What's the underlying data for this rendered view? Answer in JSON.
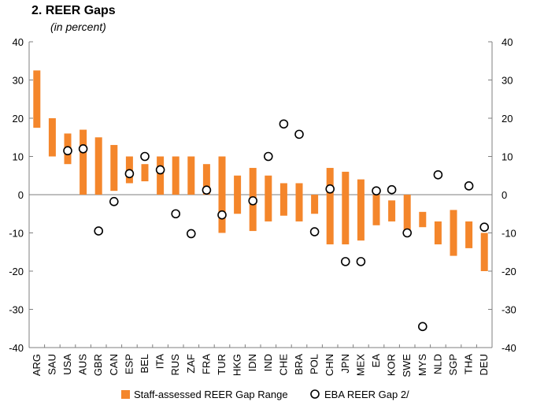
{
  "chart_data": {
    "type": "bar",
    "title": "2. REER Gaps",
    "subtitle": "(in percent)",
    "categories": [
      "ARG",
      "SAU",
      "USA",
      "AUS",
      "GBR",
      "CAN",
      "ESP",
      "BEL",
      "ITA",
      "RUS",
      "ZAF",
      "FRA",
      "TUR",
      "HKG",
      "IDN",
      "IND",
      "CHE",
      "BRA",
      "POL",
      "CHN",
      "JPN",
      "MEX",
      "EA",
      "KOR",
      "SWE",
      "MYS",
      "NLD",
      "SGP",
      "THA",
      "DEU"
    ],
    "series": [
      {
        "name": "Staff-assessed REER Gap Range",
        "kind": "floating-bar",
        "low": [
          17.5,
          10,
          8,
          0,
          0,
          1,
          3,
          3.5,
          0,
          0,
          0,
          0,
          -10,
          -5,
          -9.5,
          -7,
          -5.5,
          -7,
          -5,
          -13,
          -13,
          -12,
          -8,
          -7,
          -10,
          -8.5,
          -13,
          -16,
          -14,
          -20
        ],
        "high": [
          32.5,
          20,
          16,
          17,
          15,
          13,
          10,
          8,
          10,
          10,
          10,
          8,
          10,
          5,
          7,
          5,
          3,
          3,
          0,
          7,
          6,
          4,
          0,
          -1.5,
          0,
          -4.5,
          -7,
          -4,
          -7,
          -10
        ],
        "color": "#F4862B"
      },
      {
        "name": "EBA REER Gap 2/",
        "kind": "marker",
        "values": [
          null,
          null,
          11.5,
          12,
          -9.5,
          -1.8,
          5.5,
          10,
          6.5,
          -5,
          -10.2,
          1.2,
          -5.3,
          null,
          -1.6,
          10,
          18.5,
          15.8,
          -9.7,
          1.5,
          -17.5,
          -17.5,
          1,
          1.3,
          -10,
          -34.5,
          5.2,
          null,
          2.3,
          -8.5
        ]
      }
    ],
    "ylim": [
      -40,
      40
    ],
    "yticks": [
      -40,
      -30,
      -20,
      -10,
      0,
      10,
      20,
      30,
      40
    ],
    "ytick_labels": [
      "-40",
      "-30",
      "-20",
      "-10",
      "0",
      "10",
      "20",
      "30",
      "40"
    ],
    "xlabel": "",
    "ylabel": "",
    "grid": false,
    "legend_position": "bottom"
  },
  "colors": {
    "bar": "#F4862B",
    "axis": "#7f7f7f",
    "marker_stroke": "#000000",
    "marker_fill": "#ffffff"
  }
}
